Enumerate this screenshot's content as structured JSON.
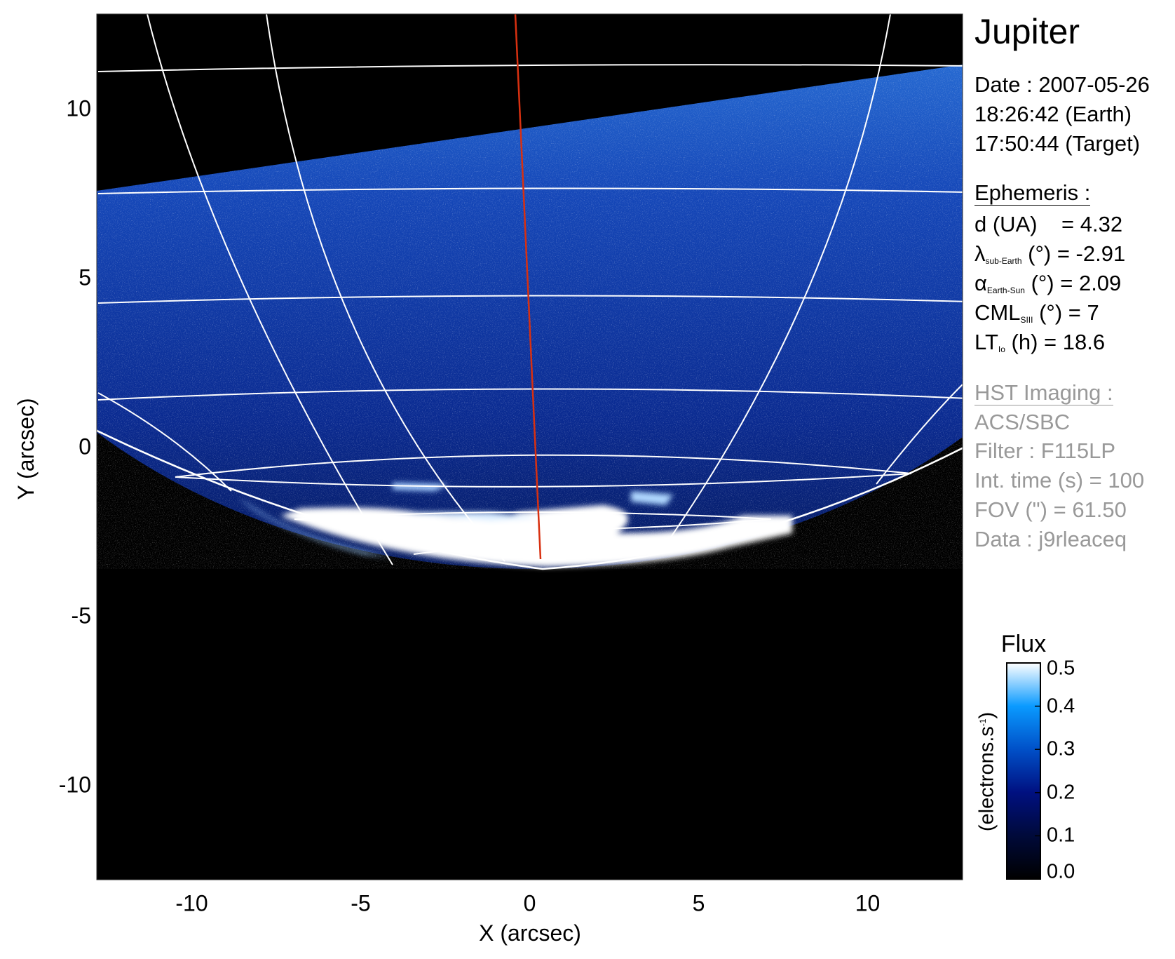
{
  "chart_data": {
    "type": "heatmap",
    "title": "Jupiter",
    "xlabel": "X (arcsec)",
    "ylabel": "Y (arcsec)",
    "xlim": [
      -12.8,
      12.8
    ],
    "ylim": [
      -12.8,
      12.8
    ],
    "xticks": [
      "-10",
      "-5",
      "0",
      "5",
      "10"
    ],
    "xtick_values": [
      -10,
      -5,
      0,
      5,
      10
    ],
    "yticks": [
      "10",
      "5",
      "0",
      "-5",
      "-10"
    ],
    "ytick_values": [
      10,
      5,
      0,
      -5,
      -10
    ],
    "colorbar": {
      "title": "Flux",
      "label": "(electrons.s",
      "label_sup": "-1",
      "label_end": ")",
      "range": [
        0.0,
        0.5
      ],
      "ticks": [
        "0.0",
        "0.1",
        "0.2",
        "0.3",
        "0.4",
        "0.5"
      ],
      "tick_values": [
        0.0,
        0.1,
        0.2,
        0.3,
        0.4,
        0.5
      ],
      "colors": [
        "#000000",
        "#000a3a",
        "#001080",
        "#0050c8",
        "#0a9aff",
        "#ffffff"
      ]
    },
    "meridian_color": "#d83010"
  },
  "info": {
    "target": "Jupiter",
    "date": "Date : 2007-05-26",
    "time_earth": "18:26:42 (Earth)",
    "time_target": "17:50:44 (Target)",
    "ephemeris_header": "Ephemeris :",
    "d_label": "d (UA)",
    "d_value": "= 4.32",
    "lambda_sym": "λ",
    "lambda_sub": "sub-Earth",
    "lambda_value": "(°) = -2.91",
    "alpha_sym": "α",
    "alpha_sub": "Earth-Sun",
    "alpha_value": "(°) = 2.09",
    "cml_sym": "CML",
    "cml_sub": "SIII",
    "cml_value": "(°) = 7",
    "lt_sym": "LT",
    "lt_sub": "Io",
    "lt_value": "(h) = 18.6",
    "hst_header": "HST Imaging :",
    "instrument": "ACS/SBC",
    "filter": "Filter : F115LP",
    "int_time": "Int. time (s) = 100",
    "fov": "FOV (\") = 61.50",
    "data_id": "Data : j9rleaceq"
  }
}
